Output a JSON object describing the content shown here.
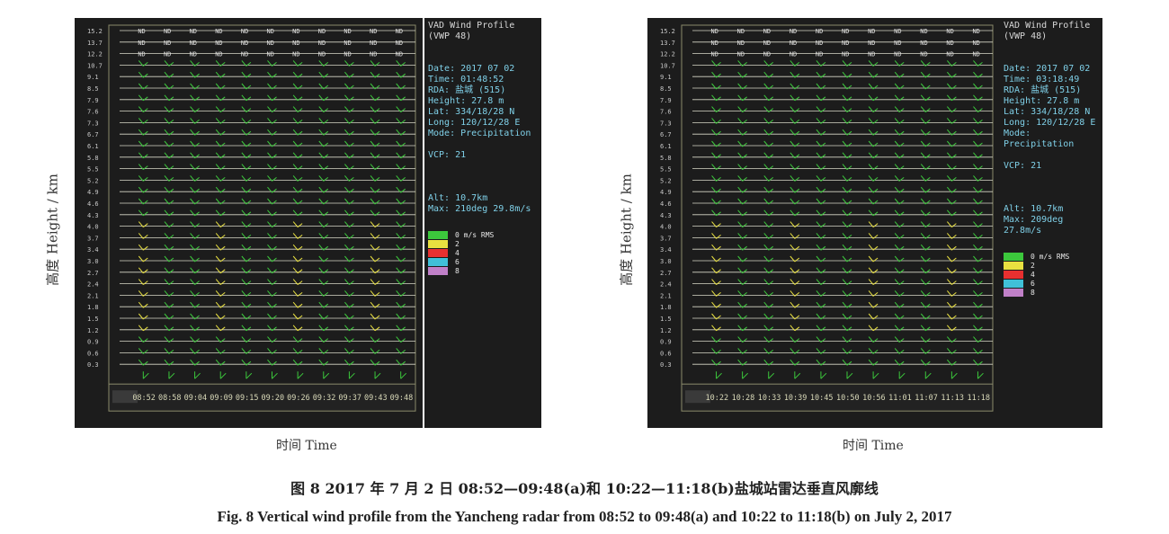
{
  "panels": [
    {
      "heights": [
        "15.2",
        "13.7",
        "12.2",
        "10.7",
        "9.1",
        "8.5",
        "7.9",
        "7.6",
        "7.3",
        "6.7",
        "6.1",
        "5.8",
        "5.5",
        "5.2",
        "4.9",
        "4.6",
        "4.3",
        "4.0",
        "3.7",
        "3.4",
        "3.0",
        "2.7",
        "2.4",
        "2.1",
        "1.8",
        "1.5",
        "1.2",
        "0.9",
        "0.6",
        "0.3"
      ],
      "times": [
        "08:52",
        "08:58",
        "09:04",
        "09:09",
        "09:15",
        "09:20",
        "09:26",
        "09:32",
        "09:37",
        "09:43",
        "09:48"
      ],
      "nd_label": "ND",
      "nd_rows": 3,
      "info": {
        "title1": "VAD Wind Profile",
        "title2": "(VWP 48)",
        "date": "Date: 2017 07 02",
        "time": "Time: 01:48:52",
        "rda": "RDA: 盐城 (515)",
        "height": "Height: 27.8 m",
        "lat": "Lat: 334/18/28 N",
        "long": "Long: 120/12/28 E",
        "mode": "Mode: Precipitation",
        "vcp": "VCP: 21",
        "alt": "Alt: 10.7km",
        "max": "Max: 210deg 29.8m/s"
      }
    },
    {
      "heights": [
        "15.2",
        "13.7",
        "12.2",
        "10.7",
        "9.1",
        "8.5",
        "7.9",
        "7.6",
        "7.3",
        "6.7",
        "6.1",
        "5.8",
        "5.5",
        "5.2",
        "4.9",
        "4.6",
        "4.3",
        "4.0",
        "3.7",
        "3.4",
        "3.0",
        "2.7",
        "2.4",
        "2.1",
        "1.8",
        "1.5",
        "1.2",
        "0.9",
        "0.6",
        "0.3"
      ],
      "times": [
        "10:22",
        "10:28",
        "10:33",
        "10:39",
        "10:45",
        "10:50",
        "10:56",
        "11:01",
        "11:07",
        "11:13",
        "11:18"
      ],
      "nd_label": "ND",
      "nd_rows": 3,
      "info": {
        "title1": "VAD Wind Profile",
        "title2": "(VWP 48)",
        "date": "Date: 2017 07 02",
        "time": "Time: 03:18:49",
        "rda": "RDA: 盐城 (515)",
        "height": "Height: 27.8 m",
        "lat": "Lat: 334/18/28 N",
        "long": "Long: 120/12/28 E",
        "mode": "Mode: Precipitation",
        "vcp": "VCP: 21",
        "alt": "Alt: 10.7km",
        "max": "Max: 209deg 27.8m/s"
      }
    }
  ],
  "legend": {
    "items": [
      {
        "label": "0 m/s RMS",
        "color": "#3cc83c"
      },
      {
        "label": "2",
        "color": "#e8e040"
      },
      {
        "label": "4",
        "color": "#e83030"
      },
      {
        "label": "6",
        "color": "#40c0d8"
      },
      {
        "label": "8",
        "color": "#c080c8"
      }
    ]
  },
  "axis": {
    "ylabel": "高度 Height / km",
    "xlabel": "时间 Time"
  },
  "caption": {
    "zh": "图 8   2017 年 7 月 2 日 08:52—09:48(a)和 10:22—11:18(b)盐城站雷达垂直风廓线",
    "en": "Fig. 8   Vertical wind profile from the Yancheng radar from 08:52 to 09:48(a)  and 10:22 to 11:18(b)  on July 2, 2017"
  },
  "colors": {
    "plot_bg": "#1c1c1c",
    "grid": "#d8d8c8",
    "barb_green": "#3cc83c",
    "barb_yellow": "#e8e040",
    "info_text": "#7fd0e8"
  }
}
